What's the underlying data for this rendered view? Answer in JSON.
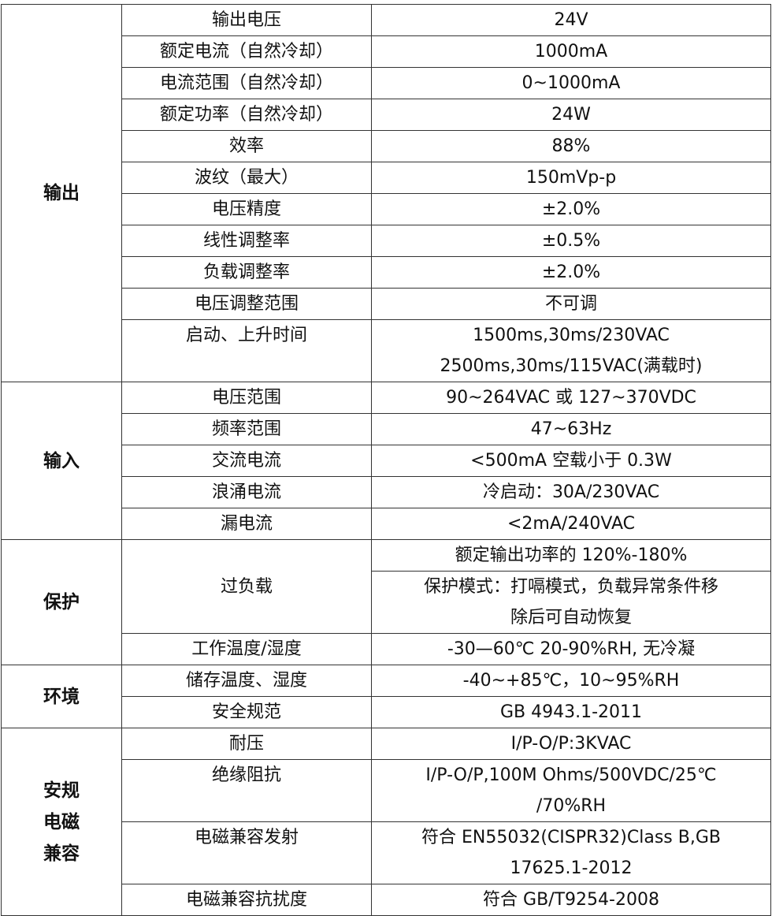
{
  "groups": [
    {
      "label": "输出",
      "rows": [
        {
          "param": "输出电压",
          "values": [
            "24V"
          ]
        },
        {
          "param": "额定电流（自然冷却）",
          "values": [
            "1000mA"
          ]
        },
        {
          "param": "电流范围（自然冷却）",
          "values": [
            "0~1000mA"
          ]
        },
        {
          "param": "额定功率（自然冷却）",
          "values": [
            "24W"
          ]
        },
        {
          "param": "效率",
          "values": [
            "88%"
          ]
        },
        {
          "param": "波纹（最大）",
          "values": [
            "150mVp-p"
          ]
        },
        {
          "param": "电压精度",
          "values": [
            "±2.0%"
          ]
        },
        {
          "param": "线性调整率",
          "values": [
            "±0.5%"
          ]
        },
        {
          "param": "负载调整率",
          "values": [
            "±2.0%"
          ]
        },
        {
          "param": "电压调整范围",
          "values": [
            "不可调"
          ]
        },
        {
          "param": "启动、上升时间",
          "values": [
            "1500ms,30ms/230VAC\n2500ms,30ms/115VAC(满载时)"
          ]
        }
      ]
    },
    {
      "label": "输入",
      "rows": [
        {
          "param": "电压范围",
          "values": [
            "90~264VAC 或 127~370VDC"
          ]
        },
        {
          "param": "频率范围",
          "values": [
            "47~63Hz"
          ]
        },
        {
          "param": "交流电流",
          "values": [
            "<500mA 空载小于 0.3W"
          ]
        },
        {
          "param": "浪涌电流",
          "values": [
            "冷启动：30A/230VAC"
          ]
        },
        {
          "param": "漏电流",
          "values": [
            "<2mA/240VAC"
          ]
        }
      ]
    },
    {
      "label": "保护",
      "rows": [
        {
          "param": "过负载",
          "values": [
            "额定输出功率的 120%-180%",
            "保护模式：打嗝模式，负载异常条件移\n除后可自动恢复"
          ]
        },
        {
          "param": "工作温度/湿度",
          "values": [
            "-30—60℃  20-90%RH, 无冷凝"
          ]
        }
      ]
    },
    {
      "label": "环境",
      "rows": [
        {
          "param": "储存温度、湿度",
          "values": [
            "-40~+85℃，10~95%RH"
          ]
        },
        {
          "param": "安全规范",
          "values": [
            "GB 4943.1-2011"
          ]
        }
      ]
    },
    {
      "label": "安规\n电磁\n兼容",
      "rows": [
        {
          "param": "耐压",
          "values": [
            "I/P-O/P:3KVAC"
          ]
        },
        {
          "param": "绝缘阻抗",
          "values": [
            "I/P-O/P,100M Ohms/500VDC/25℃\n/70%RH"
          ]
        },
        {
          "param": "电磁兼容发射",
          "values": [
            "符合 EN55032(CISPR32)Class B,GB\n17625.1-2012"
          ]
        },
        {
          "param": "电磁兼容抗扰度",
          "values": [
            "符合 GB/T9254-2008"
          ]
        }
      ]
    }
  ]
}
